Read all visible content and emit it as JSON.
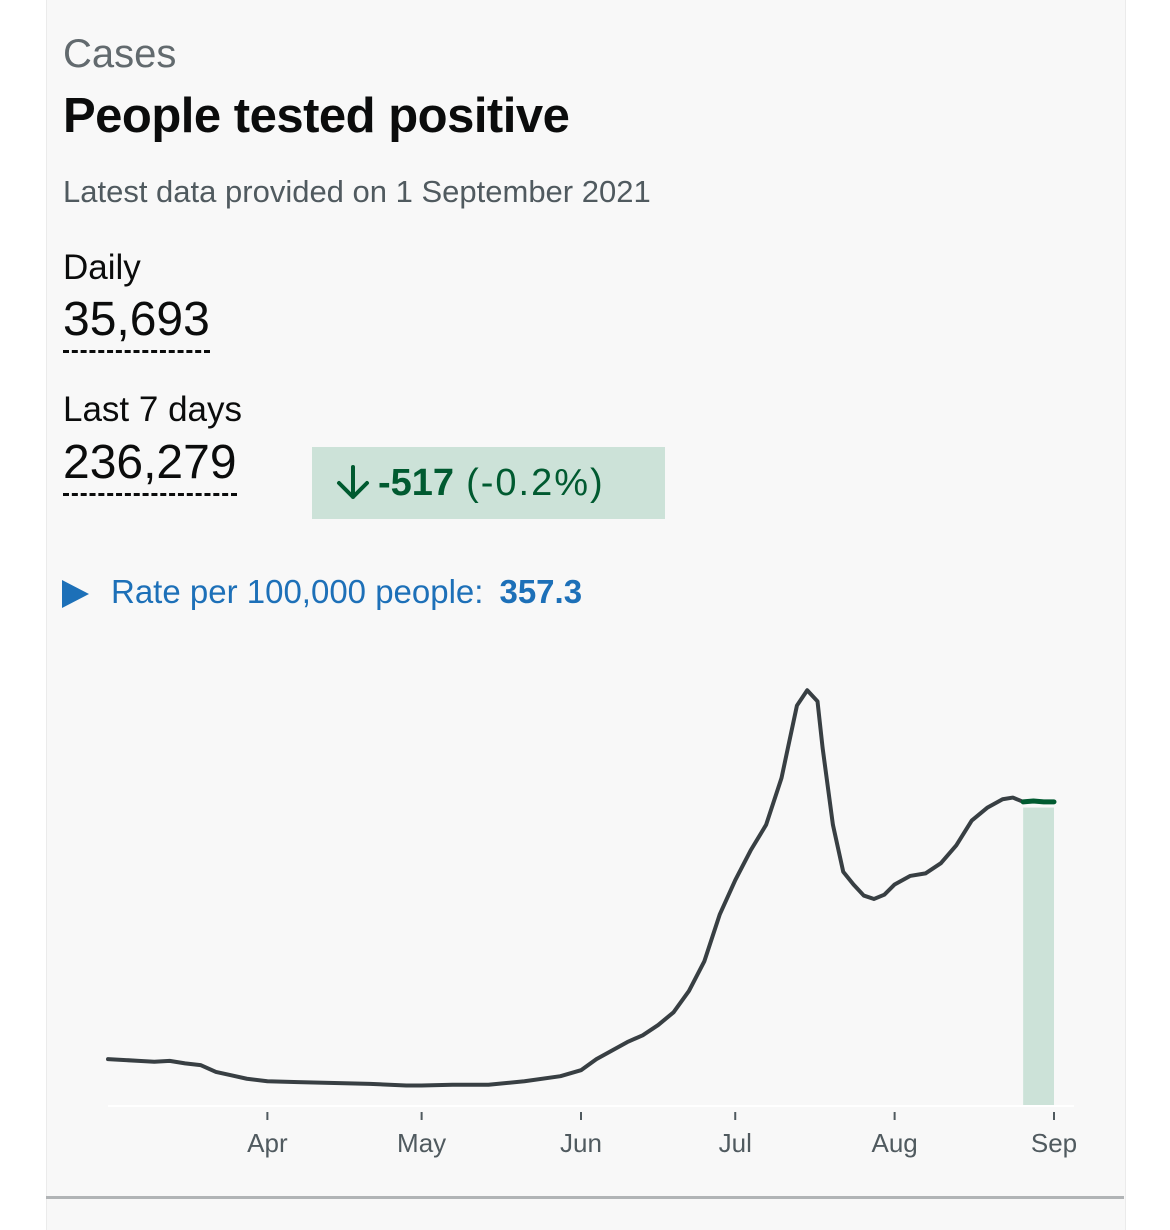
{
  "card": {
    "caption": "Cases",
    "title": "People tested positive",
    "updated": "Latest data provided on 1 September 2021"
  },
  "metrics": {
    "daily": {
      "label": "Daily",
      "value": "35,693"
    },
    "last7": {
      "label": "Last 7 days",
      "value": "236,279"
    },
    "change": {
      "icon": "arrow-down-icon",
      "value": "-517",
      "percent": "(-0.2%)"
    }
  },
  "rate": {
    "label": "Rate per 100,000 people:",
    "value": "357.3"
  },
  "colors": {
    "line": "#383f43",
    "highlight_line": "#005a30",
    "highlight_fill": "#cce2d8",
    "link": "#1d70b8"
  },
  "chart_data": {
    "type": "line",
    "title": "",
    "xlabel": "",
    "ylabel": "",
    "x_ticks": [
      "Apr",
      "May",
      "Jun",
      "Jul",
      "Aug",
      "Sep"
    ],
    "ylim": [
      0,
      50000
    ],
    "grid": false,
    "highlight": {
      "label": "Last 7 days",
      "from": "2021-08-26",
      "to": "2021-09-01"
    },
    "series": [
      {
        "x": [
          "2021-03-01",
          "2021-03-04",
          "2021-03-07",
          "2021-03-10",
          "2021-03-13",
          "2021-03-16",
          "2021-03-19",
          "2021-03-22",
          "2021-03-25",
          "2021-03-28",
          "2021-04-01",
          "2021-04-07",
          "2021-04-14",
          "2021-04-21",
          "2021-04-28",
          "2021-05-01",
          "2021-05-07",
          "2021-05-14",
          "2021-05-21",
          "2021-05-28",
          "2021-06-01",
          "2021-06-04",
          "2021-06-07",
          "2021-06-10",
          "2021-06-13",
          "2021-06-16",
          "2021-06-19",
          "2021-06-22",
          "2021-06-25",
          "2021-06-28",
          "2021-07-01",
          "2021-07-04",
          "2021-07-07",
          "2021-07-10",
          "2021-07-13",
          "2021-07-15",
          "2021-07-17",
          "2021-07-18",
          "2021-07-20",
          "2021-07-22",
          "2021-07-24",
          "2021-07-26",
          "2021-07-28",
          "2021-07-30",
          "2021-08-01",
          "2021-08-04",
          "2021-08-07",
          "2021-08-10",
          "2021-08-13",
          "2021-08-16",
          "2021-08-19",
          "2021-08-22",
          "2021-08-24",
          "2021-08-26",
          "2021-08-28",
          "2021-08-30",
          "2021-09-01"
        ],
        "y": [
          5500,
          5400,
          5300,
          5200,
          5300,
          5000,
          4800,
          4000,
          3600,
          3200,
          2900,
          2800,
          2700,
          2600,
          2400,
          2400,
          2500,
          2500,
          2900,
          3500,
          4200,
          5500,
          6500,
          7500,
          8300,
          9500,
          11000,
          13500,
          17000,
          22500,
          26500,
          30000,
          33000,
          38500,
          47000,
          48800,
          47500,
          42000,
          33000,
          27500,
          26000,
          24700,
          24300,
          24800,
          26000,
          27000,
          27300,
          28500,
          30600,
          33500,
          35000,
          36000,
          36200,
          35700,
          35800,
          35700,
          35693
        ]
      }
    ]
  }
}
